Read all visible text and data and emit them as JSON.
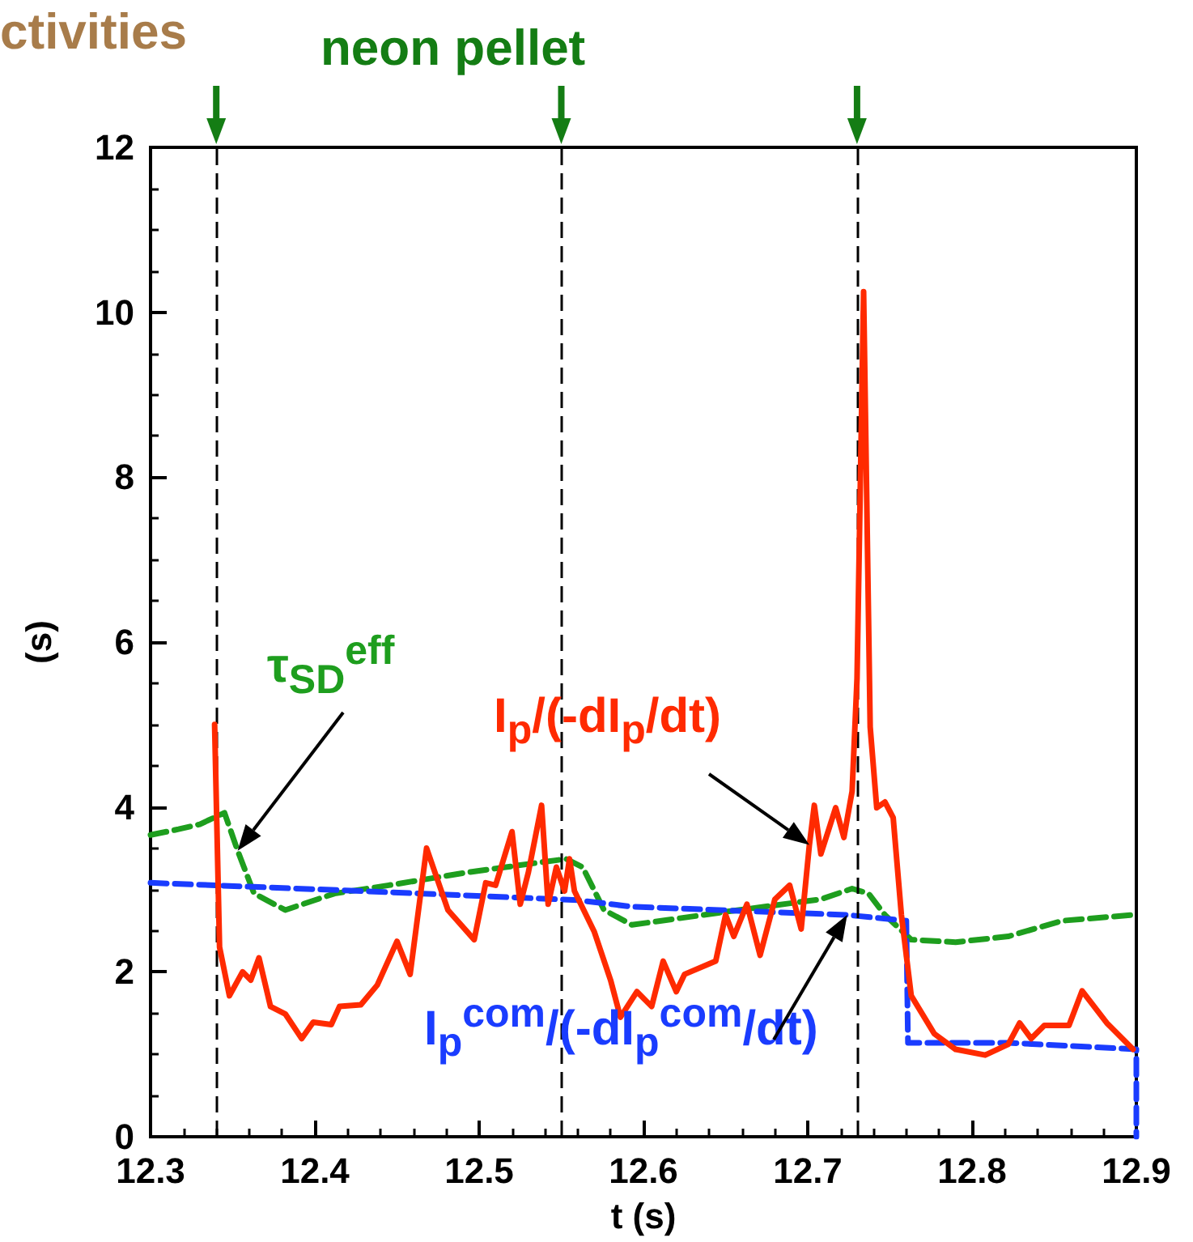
{
  "chart_data": {
    "type": "line",
    "xlabel": "t (s)",
    "ylabel": "(s)",
    "annotations": [
      "ctivities",
      "neon pellet"
    ],
    "xlim": [
      12.3,
      12.9
    ],
    "xticks": [
      12.3,
      12.4,
      12.5,
      12.6,
      12.7,
      12.8,
      12.9
    ],
    "ylim": [
      0,
      12
    ],
    "yticks": [
      0,
      2,
      4,
      6,
      8,
      10,
      12
    ],
    "grid": false,
    "legend": false,
    "marker": "none",
    "ref_lines": [
      {
        "axis": "x",
        "value": 12.34,
        "color": "#000000",
        "line_style": "dashed"
      },
      {
        "axis": "x",
        "value": 12.55,
        "color": "#000000",
        "line_style": "dashed"
      },
      {
        "axis": "x",
        "value": 12.73,
        "color": "#000000",
        "line_style": "dashed"
      }
    ],
    "series": [
      {
        "name": "τ$_{SD}$$^{eff}$",
        "color": "#1e9e1e",
        "line_style": "dashed",
        "x": [
          12.3,
          12.317,
          12.33,
          12.345,
          12.353,
          12.363,
          12.382,
          12.412,
          12.445,
          12.494,
          12.553,
          12.563,
          12.576,
          12.593,
          12.658,
          12.708,
          12.727,
          12.737,
          12.747,
          12.763,
          12.79,
          12.822,
          12.855,
          12.898
        ],
        "values": [
          3.66,
          3.73,
          3.79,
          3.93,
          3.47,
          2.95,
          2.75,
          2.95,
          3.05,
          3.21,
          3.37,
          3.27,
          2.75,
          2.57,
          2.75,
          2.88,
          3.01,
          2.95,
          2.69,
          2.39,
          2.36,
          2.43,
          2.62,
          2.69
        ]
      },
      {
        "name": "I$_{p}$$^{com}$/(-dI$_{p}$$^{com}$/dt)",
        "color": "#1a3cff",
        "line_style": "dashed",
        "x": [
          12.3,
          12.428,
          12.56,
          12.593,
          12.724,
          12.76,
          12.761,
          12.822,
          12.9,
          12.9
        ],
        "values": [
          3.08,
          2.98,
          2.87,
          2.79,
          2.69,
          2.62,
          1.14,
          1.14,
          1.06,
          0
        ]
      },
      {
        "name": "I$_{p}$/(-dI$_{p}$/dt)",
        "color": "#ff2a00",
        "line_style": "solid",
        "x": [
          12.339,
          12.342,
          12.348,
          12.356,
          12.361,
          12.366,
          12.373,
          12.382,
          12.392,
          12.399,
          12.41,
          12.415,
          12.428,
          12.438,
          12.45,
          12.458,
          12.468,
          12.481,
          12.497,
          12.504,
          12.51,
          12.52,
          12.525,
          12.53,
          12.538,
          12.542,
          12.547,
          12.552,
          12.555,
          12.558,
          12.57,
          12.58,
          12.586,
          12.596,
          12.605,
          12.612,
          12.62,
          12.625,
          12.644,
          12.65,
          12.655,
          12.663,
          12.671,
          12.68,
          12.689,
          12.696,
          12.701,
          12.704,
          12.708,
          12.717,
          12.722,
          12.727,
          12.73,
          12.734,
          12.738,
          12.742,
          12.747,
          12.752,
          12.757,
          12.763,
          12.777,
          12.79,
          12.808,
          12.822,
          12.829,
          12.836,
          12.844,
          12.859,
          12.867,
          12.882,
          12.898
        ],
        "values": [
          5.0,
          2.3,
          1.71,
          2.0,
          1.9,
          2.17,
          1.58,
          1.49,
          1.19,
          1.39,
          1.36,
          1.58,
          1.6,
          1.84,
          2.37,
          1.97,
          3.5,
          2.75,
          2.39,
          3.08,
          3.05,
          3.7,
          2.82,
          3.21,
          4.02,
          2.82,
          3.27,
          2.98,
          3.37,
          2.98,
          2.49,
          1.9,
          1.45,
          1.76,
          1.58,
          2.13,
          1.76,
          1.97,
          2.13,
          2.69,
          2.43,
          2.82,
          2.2,
          2.88,
          3.05,
          2.52,
          3.54,
          4.02,
          3.43,
          3.99,
          3.63,
          4.19,
          5.56,
          10.25,
          4.97,
          3.99,
          4.06,
          3.87,
          2.69,
          1.71,
          1.25,
          1.06,
          0.99,
          1.12,
          1.38,
          1.19,
          1.35,
          1.35,
          1.77,
          1.38,
          1.06
        ]
      }
    ]
  }
}
